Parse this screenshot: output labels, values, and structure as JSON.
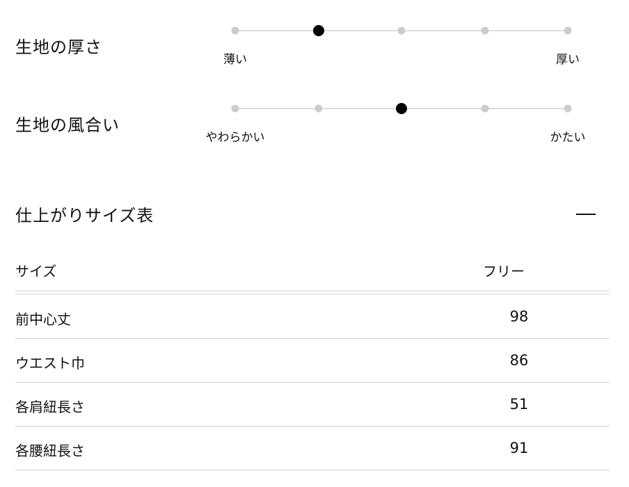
{
  "ratings": [
    {
      "title": "生地の厚さ",
      "min_label": "薄い",
      "max_label": "厚い",
      "steps": 5,
      "selected": 2
    },
    {
      "title": "生地の風合い",
      "min_label": "やわらかい",
      "max_label": "かたい",
      "steps": 5,
      "selected": 3
    }
  ],
  "size_table": {
    "title": "仕上がりサイズ表",
    "toggle_icon": "minus-icon",
    "header": {
      "label": "サイズ",
      "size": "フリー"
    },
    "rows": [
      {
        "label": "前中心丈",
        "value": "98"
      },
      {
        "label": "ウエスト巾",
        "value": "86"
      },
      {
        "label": "各肩紐長さ",
        "value": "51"
      },
      {
        "label": "各腰紐長さ",
        "value": "91"
      }
    ]
  }
}
